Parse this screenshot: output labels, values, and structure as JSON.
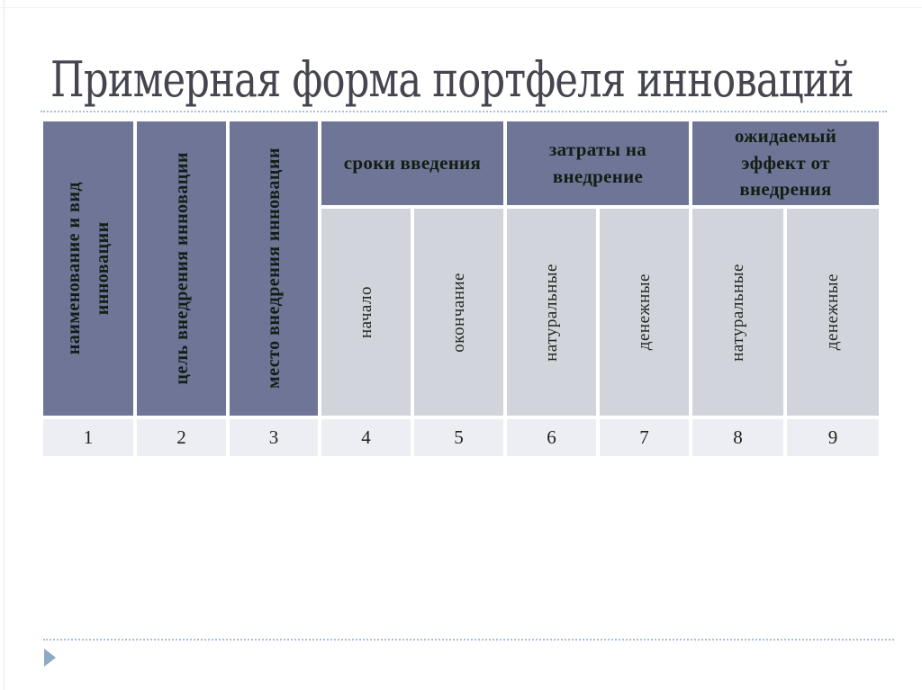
{
  "title": "Примерная форма портфеля инноваций",
  "table": {
    "rotated_columns": [
      {
        "label": "наименование и вид\nинновации"
      },
      {
        "label": "цель внедрения инновации"
      },
      {
        "label": "место внедрения инновации"
      }
    ],
    "groups": [
      {
        "label": "сроки введения",
        "children": [
          "начало",
          "окончание"
        ]
      },
      {
        "label": "затраты на\nвнедрение",
        "children": [
          "натуральные",
          "денежные"
        ]
      },
      {
        "label": "ожидаемый\nэффект от\nвнедрения",
        "children": [
          "натуральные",
          "денежные"
        ]
      }
    ],
    "column_numbers": [
      "1",
      "2",
      "3",
      "4",
      "5",
      "6",
      "7",
      "8",
      "9"
    ]
  },
  "colors": {
    "header_bg": "#6f7596",
    "subheader_bg": "#d2d4dc",
    "numbers_bg": "#eceef3",
    "header_text": "#131d14",
    "title_text": "#45454f",
    "dotted_line": "#a6c0d8",
    "triangle": "#8ea9c6"
  },
  "decorations": {
    "footer_icon": "right-pointing-triangle"
  }
}
